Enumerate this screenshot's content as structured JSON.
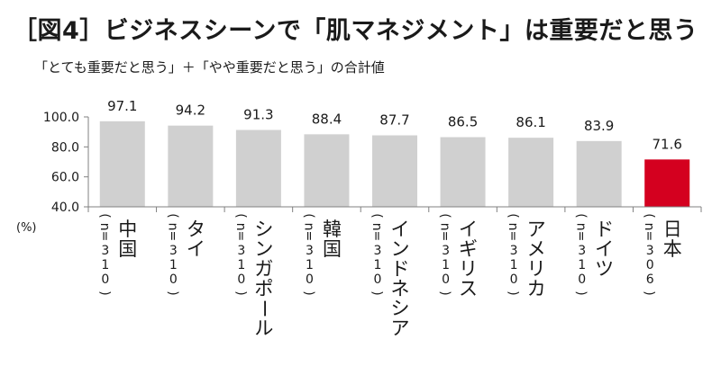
{
  "title": "［図4］ビジネスシーンで「肌マネジメント」は重要だと思う",
  "subtitle": "「とても重要だと思う」＋「やや重要だと思う」の合計値",
  "colors": {
    "bar_default": "#d0d0d0",
    "bar_highlight": "#d4001f",
    "axis": "#808080"
  },
  "chart_data": {
    "type": "bar",
    "categories": [
      "中国",
      "タイ",
      "シンガポール",
      "韓国",
      "インドネシア",
      "イギリス",
      "アメリカ",
      "ドイツ",
      "日本"
    ],
    "sample_sizes": [
      "310",
      "310",
      "310",
      "310",
      "310",
      "310",
      "310",
      "310",
      "306"
    ],
    "values": [
      97.1,
      94.2,
      91.3,
      88.4,
      87.7,
      86.5,
      86.1,
      83.9,
      71.6
    ],
    "highlight_index": 8,
    "ylim": [
      40,
      100
    ],
    "yticks": [
      "40.0",
      "60.0",
      "80.0",
      "100.0"
    ],
    "ylabel": "(%)",
    "n_prefix": "n=",
    "grid": false,
    "legend": "none"
  }
}
